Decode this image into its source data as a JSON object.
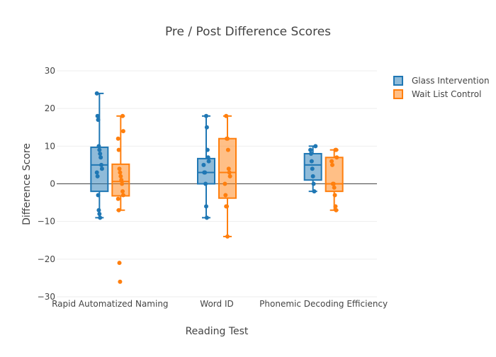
{
  "chart_data": {
    "type": "box",
    "title": "Pre / Post Difference Scores",
    "xlabel": "Reading Test",
    "ylabel": "Difference Score",
    "ylim": [
      -30,
      30
    ],
    "y_ticks": [
      30,
      20,
      10,
      0,
      -10,
      -20,
      -30
    ],
    "y_tick_labels": [
      "30",
      "20",
      "10",
      "0",
      "−10",
      "−20",
      "−30"
    ],
    "grid": "horizontal",
    "zero_line": true,
    "legend_position": "top-right",
    "categories": [
      "Rapid Automatized Naming",
      "Word ID",
      "Phonemic Decoding Efficiency"
    ],
    "series": [
      {
        "name": "Glass Intervention",
        "color": "#1f77b4",
        "boxes": [
          {
            "q1": -2,
            "median": 5,
            "q3": 9.7,
            "whisker_low": -9,
            "whisker_high": 24,
            "points": [
              24,
              18,
              17,
              10,
              9,
              8,
              7,
              5,
              4,
              3,
              2,
              -3,
              -7,
              -8,
              -9
            ]
          },
          {
            "q1": 0,
            "median": 3,
            "q3": 6.7,
            "whisker_low": -9,
            "whisker_high": 18,
            "points": [
              18,
              15,
              9,
              7,
              6,
              5,
              3,
              3,
              0,
              -6,
              -9
            ]
          },
          {
            "q1": 1,
            "median": 5,
            "q3": 8,
            "whisker_low": -2,
            "whisker_high": 10,
            "points": [
              10,
              9,
              8,
              6,
              4,
              2,
              0,
              -2
            ]
          }
        ]
      },
      {
        "name": "Wait List Control",
        "color": "#ff7f0e",
        "boxes": [
          {
            "q1": -3.2,
            "median": 0.6,
            "q3": 5.2,
            "whisker_low": -7,
            "whisker_high": 18,
            "points": [
              18,
              14,
              12,
              9,
              4,
              3,
              2,
              1,
              0,
              -2,
              -3,
              -4,
              -7,
              -21,
              -26
            ]
          },
          {
            "q1": -3.8,
            "median": 3,
            "q3": 12,
            "whisker_low": -14,
            "whisker_high": 18,
            "points": [
              18,
              12,
              12,
              9,
              4,
              3,
              2,
              0,
              -3,
              -6,
              -6,
              -14
            ]
          },
          {
            "q1": -2,
            "median": 0,
            "q3": 7,
            "whisker_low": -7,
            "whisker_high": 9,
            "points": [
              9,
              9,
              7,
              6,
              5,
              0,
              0,
              -1,
              -3,
              -6,
              -7
            ]
          }
        ]
      }
    ]
  }
}
